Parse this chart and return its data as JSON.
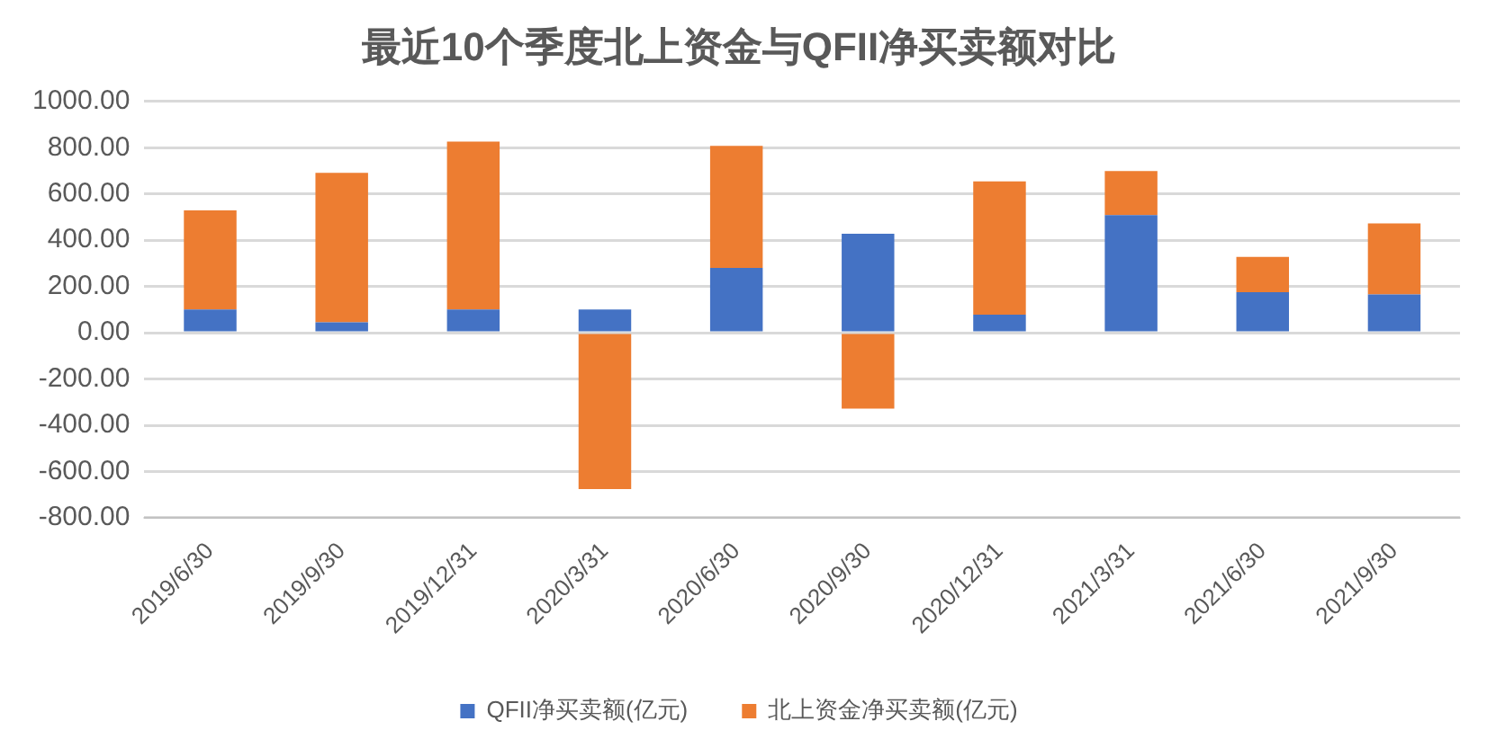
{
  "chart_data": {
    "type": "bar",
    "title": "最近10个季度北上资金与QFII净买卖额对比",
    "stacked": true,
    "categories": [
      "2019/6/30",
      "2019/9/30",
      "2019/12/31",
      "2020/3/31",
      "2020/6/30",
      "2020/9/30",
      "2020/12/31",
      "2021/3/31",
      "2021/6/30",
      "2021/9/30"
    ],
    "series": [
      {
        "name": "QFII净买卖额(亿元)",
        "color": "#4472c4",
        "values": [
          100,
          45,
          100,
          100,
          280,
          428,
          78,
          509,
          175,
          166
        ]
      },
      {
        "name": "北上资金净买卖额(亿元)",
        "color": "#ed7d31",
        "values": [
          429,
          646,
          726,
          -676,
          528,
          -328,
          576,
          190,
          153,
          307
        ]
      }
    ],
    "ylim": [
      -800,
      1000
    ],
    "yticks": [
      {
        "value": -800,
        "label": "-800.00"
      },
      {
        "value": -600,
        "label": "-600.00"
      },
      {
        "value": -400,
        "label": "-400.00"
      },
      {
        "value": -200,
        "label": "-200.00"
      },
      {
        "value": 0,
        "label": "0.00"
      },
      {
        "value": 200,
        "label": "200.00"
      },
      {
        "value": 400,
        "label": "400.00"
      },
      {
        "value": 600,
        "label": "600.00"
      },
      {
        "value": 800,
        "label": "800.00"
      },
      {
        "value": 1000,
        "label": "1000.00"
      }
    ],
    "grid": "y",
    "legend": "bottom"
  }
}
